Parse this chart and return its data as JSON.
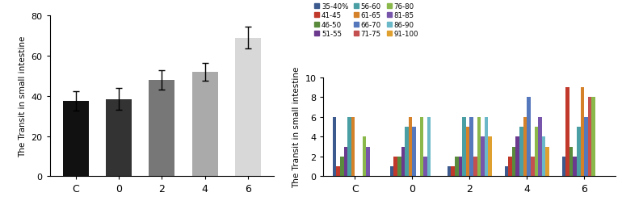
{
  "left_categories": [
    "C",
    "0",
    "2",
    "4",
    "6"
  ],
  "left_values": [
    37.5,
    38.5,
    48.0,
    52.0,
    69.0
  ],
  "left_errors": [
    5.0,
    5.5,
    5.0,
    4.5,
    5.5
  ],
  "left_colors": [
    "#111111",
    "#333333",
    "#777777",
    "#aaaaaa",
    "#d8d8d8"
  ],
  "left_ylabel": "The Transit in small intestine",
  "left_ylim": [
    0,
    80
  ],
  "left_yticks": [
    0,
    20,
    40,
    60,
    80
  ],
  "right_categories": [
    "C",
    "0",
    "2",
    "4",
    "6"
  ],
  "right_ylabel": "The Transit in small intestine",
  "right_ylim": [
    0,
    10
  ],
  "right_yticks": [
    0,
    2,
    4,
    6,
    8,
    10
  ],
  "series_labels": [
    "35-40%",
    "41-45",
    "46-50",
    "51-55",
    "56-60",
    "61-65",
    "66-70",
    "71-75",
    "76-80",
    "81-85",
    "86-90",
    "91-100"
  ],
  "series_colors": [
    "#3d5a8e",
    "#c0392b",
    "#5a8a3c",
    "#6b3a8e",
    "#4a9fa5",
    "#d4812a",
    "#5577bb",
    "#c45050",
    "#8ab84a",
    "#7755aa",
    "#6ab8c8",
    "#e0a030"
  ],
  "right_data": {
    "C": [
      6,
      1,
      2,
      3,
      6,
      6,
      0,
      0,
      4,
      3,
      0,
      0
    ],
    "0": [
      1,
      2,
      2,
      3,
      5,
      6,
      5,
      0,
      6,
      2,
      6,
      0
    ],
    "2": [
      1,
      1,
      2,
      2,
      6,
      5,
      6,
      2,
      6,
      4,
      6,
      4
    ],
    "4": [
      1,
      2,
      3,
      4,
      5,
      6,
      8,
      2,
      5,
      6,
      4,
      3
    ],
    "6": [
      2,
      9,
      3,
      2,
      5,
      9,
      6,
      8,
      8,
      0,
      0,
      0
    ]
  }
}
